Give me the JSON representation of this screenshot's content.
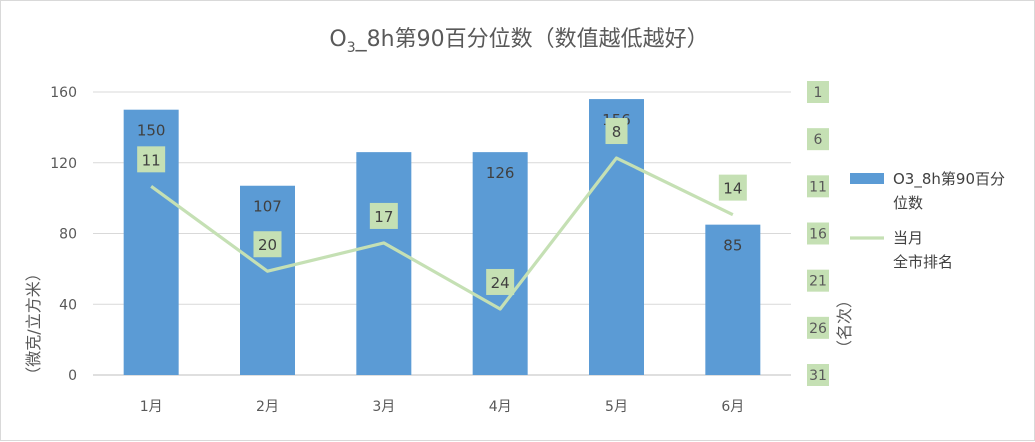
{
  "chart_data": {
    "type": "bar",
    "title": "O3_8h第90百分位数（数值越低越好）",
    "title_main": "O",
    "title_sub": "3",
    "title_rest": "_8h第90百分位数（数值越低越好）",
    "categories": [
      "1月",
      "2月",
      "3月",
      "4月",
      "5月",
      "6月"
    ],
    "series": [
      {
        "name": "O3_8h第90百分位数",
        "type": "bar",
        "axis": "left",
        "values": [
          150,
          107,
          126,
          126,
          156,
          85
        ],
        "labels": [
          "150",
          "107",
          "",
          "126",
          "156",
          "85"
        ],
        "color": "#5b9bd5"
      },
      {
        "name": "当月全市排名",
        "type": "line",
        "axis": "right",
        "values": [
          11,
          20,
          17,
          24,
          8,
          14
        ],
        "labels": [
          "11",
          "20",
          "17",
          "24",
          "8",
          "14"
        ],
        "color": "#c5e0b4",
        "label_bg": "#c5e0b4"
      }
    ],
    "ylabel": "（微克/立方米）",
    "ylim": [
      0,
      160
    ],
    "yticks": [
      "0",
      "40",
      "80",
      "120",
      "160"
    ],
    "y2label": "（名次）",
    "y2lim": [
      1,
      31
    ],
    "y2ticks": [
      "1",
      "6",
      "11",
      "16",
      "21",
      "26",
      "31"
    ],
    "y2reversed": true,
    "legend": {
      "position": "right",
      "bar_label_lines": [
        "O3_8h第90百分",
        "位数"
      ],
      "line_label_lines": [
        "当月",
        "全市排名"
      ]
    },
    "grid": true
  }
}
